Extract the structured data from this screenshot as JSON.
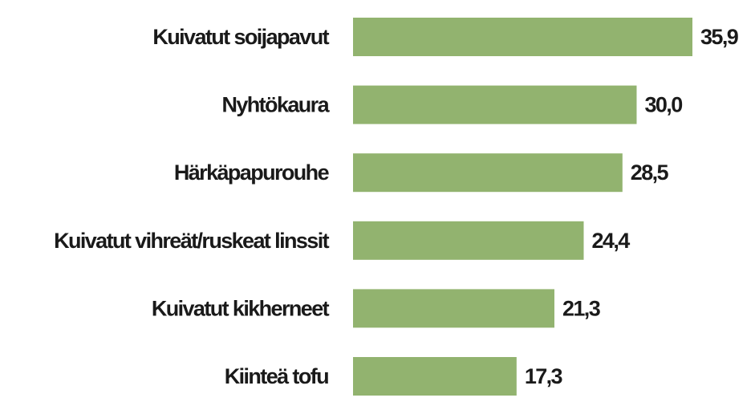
{
  "chart_data": {
    "type": "bar",
    "orientation": "horizontal",
    "categories": [
      "Kuivatut soijapavut",
      "Nyhtökaura",
      "Härkäpapurouhe",
      "Kuivatut vihreät/ruskeat linssit",
      "Kuivatut kikherneet",
      "Kiinteä tofu"
    ],
    "values": [
      35.9,
      30.0,
      28.5,
      24.4,
      21.3,
      17.3
    ],
    "value_labels": [
      "35,9",
      "30,0",
      "28,5",
      "24,4",
      "21,3",
      "17,3"
    ],
    "title": "",
    "xlabel": "",
    "ylabel": "",
    "xlim": [
      0,
      35.9
    ],
    "grid": false,
    "legend": "none",
    "bar_color": "#92b36f",
    "text_color": "#1a1a1a"
  }
}
